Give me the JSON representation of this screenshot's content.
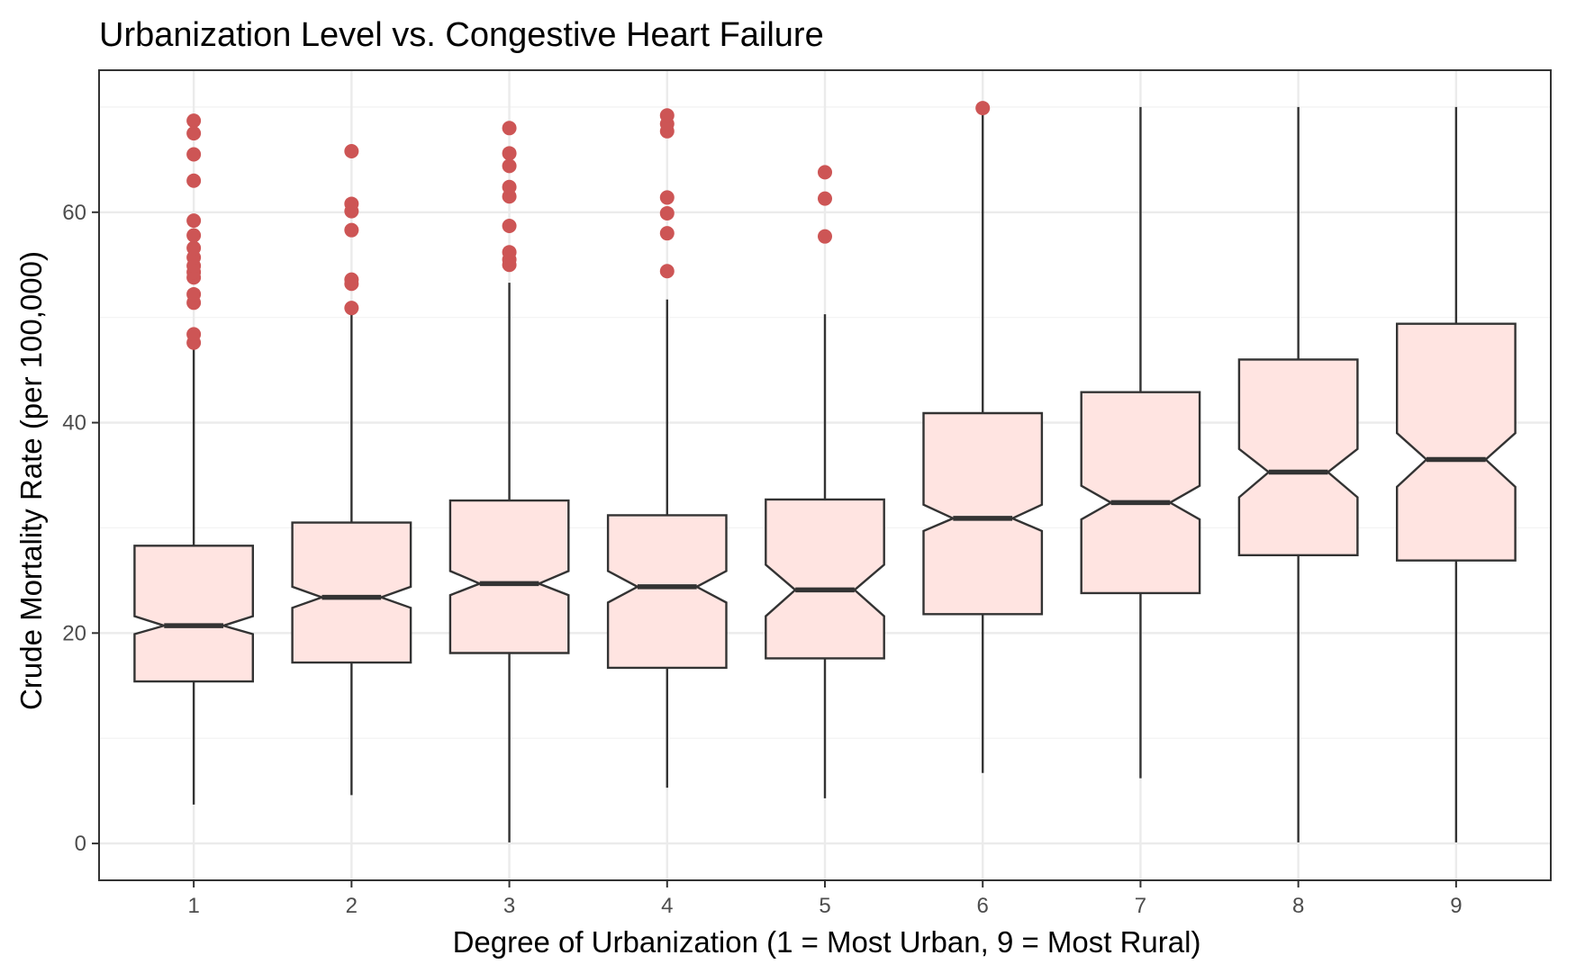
{
  "chart_data": {
    "type": "boxplot",
    "notched": true,
    "title": "Urbanization Level vs. Congestive Heart Failure",
    "xlabel": "Degree of Urbanization (1 = Most Urban, 9 = Most Rural)",
    "ylabel": "Crude Mortality Rate (per 100,000)",
    "ylim": [
      -3.5,
      73.5
    ],
    "y_ticks": [
      0,
      20,
      40,
      60
    ],
    "grid": true,
    "categories": [
      "1",
      "2",
      "3",
      "4",
      "5",
      "6",
      "7",
      "8",
      "9"
    ],
    "colors": {
      "box_fill": "#ffe4e1",
      "box_stroke": "#333333",
      "outlier": "#cd5555"
    },
    "boxes": [
      {
        "category": "1",
        "lower_whisker": 3.7,
        "q1": 15.4,
        "median": 20.7,
        "q3": 28.3,
        "upper_whisker": 47.2,
        "notch_low": 19.9,
        "notch_high": 21.6,
        "outliers": [
          47.6,
          48.4,
          51.4,
          52.2,
          53.8,
          54.3,
          54.9,
          55.7,
          56.6,
          57.8,
          59.2,
          63.0,
          65.5,
          67.5,
          68.7
        ]
      },
      {
        "category": "2",
        "lower_whisker": 4.6,
        "q1": 17.2,
        "median": 23.4,
        "q3": 30.5,
        "upper_whisker": 50.3,
        "notch_low": 22.4,
        "notch_high": 24.4,
        "outliers": [
          50.9,
          53.2,
          53.6,
          58.3,
          60.1,
          60.8,
          65.8
        ]
      },
      {
        "category": "3",
        "lower_whisker": 0.1,
        "q1": 18.1,
        "median": 24.7,
        "q3": 32.6,
        "upper_whisker": 53.3,
        "notch_low": 23.6,
        "notch_high": 25.9,
        "outliers": [
          55.0,
          55.5,
          56.2,
          58.7,
          61.5,
          62.4,
          64.4,
          65.6,
          68.0
        ]
      },
      {
        "category": "4",
        "lower_whisker": 5.3,
        "q1": 16.7,
        "median": 24.4,
        "q3": 31.2,
        "upper_whisker": 51.7,
        "notch_low": 22.9,
        "notch_high": 25.9,
        "outliers": [
          54.4,
          58.0,
          59.9,
          61.4,
          67.7,
          68.4,
          69.2
        ]
      },
      {
        "category": "5",
        "lower_whisker": 4.3,
        "q1": 17.6,
        "median": 24.1,
        "q3": 32.7,
        "upper_whisker": 50.3,
        "notch_low": 21.6,
        "notch_high": 26.5,
        "outliers": [
          57.7,
          61.3,
          63.8
        ]
      },
      {
        "category": "6",
        "lower_whisker": 6.7,
        "q1": 21.8,
        "median": 30.9,
        "q3": 40.9,
        "upper_whisker": 69.8,
        "notch_low": 29.7,
        "notch_high": 32.2,
        "outliers": [
          69.9
        ]
      },
      {
        "category": "7",
        "lower_whisker": 6.2,
        "q1": 23.8,
        "median": 32.4,
        "q3": 42.9,
        "upper_whisker": 70.0,
        "notch_low": 30.8,
        "notch_high": 34.0,
        "outliers": []
      },
      {
        "category": "8",
        "lower_whisker": 0.1,
        "q1": 27.4,
        "median": 35.3,
        "q3": 46.0,
        "upper_whisker": 70.0,
        "notch_low": 32.9,
        "notch_high": 37.5,
        "outliers": []
      },
      {
        "category": "9",
        "lower_whisker": 0.1,
        "q1": 26.9,
        "median": 36.5,
        "q3": 49.4,
        "upper_whisker": 70.0,
        "notch_low": 33.9,
        "notch_high": 39.0,
        "outliers": []
      }
    ]
  }
}
